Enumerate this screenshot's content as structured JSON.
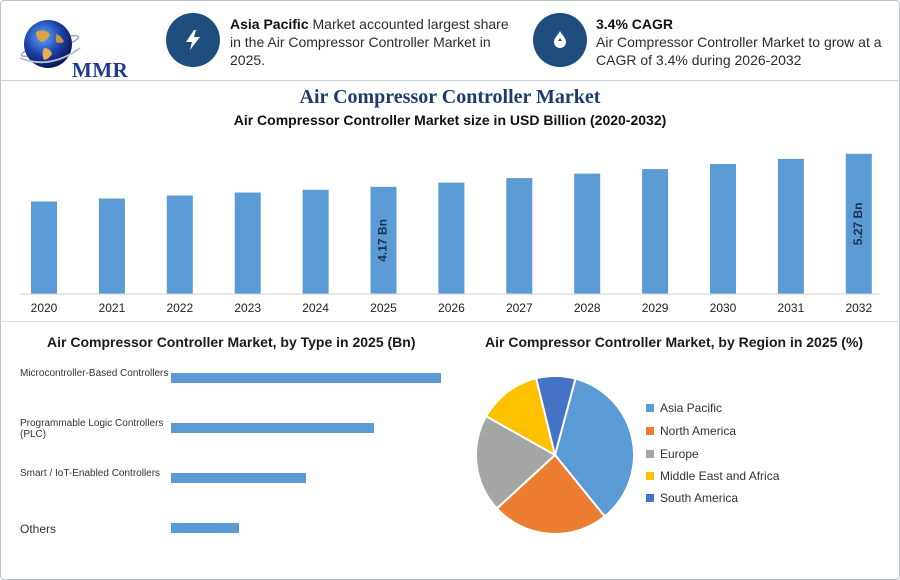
{
  "brand": {
    "logo_text": "MMR"
  },
  "header": {
    "left": {
      "highlight": "Asia Pacific",
      "text": " Market accounted largest share in the Air Compressor Controller Market in 2025."
    },
    "right": {
      "highlight": "3.4% CAGR",
      "text": "Air Compressor Controller Market to grow at a CAGR of 3.4% during 2026-2032"
    }
  },
  "title": "Air Compressor Controller Market",
  "subtitle": "Air Compressor Controller Market size in USD Billion (2020-2032)",
  "colors": {
    "bar": "#5b9bd5",
    "navy": "#1d4e7e",
    "title": "#1f3a6e"
  },
  "chart_data": [
    {
      "type": "bar",
      "title": "Air Compressor Controller Market size in USD Billion (2020-2032)",
      "categories": [
        "2020",
        "2021",
        "2022",
        "2023",
        "2024",
        "2025",
        "2026",
        "2027",
        "2028",
        "2029",
        "2030",
        "2031",
        "2032"
      ],
      "values": [
        3.68,
        3.78,
        3.88,
        3.98,
        4.07,
        4.17,
        4.31,
        4.46,
        4.61,
        4.76,
        4.93,
        5.1,
        5.27
      ],
      "data_labels": {
        "2025": "4.17 Bn",
        "2032": "5.27 Bn"
      },
      "ylim": [
        0,
        5.5
      ]
    },
    {
      "type": "bar",
      "orientation": "horizontal",
      "title": "Air Compressor Controller Market, by Type in 2025 (Bn)",
      "categories": [
        "Microcontroller-Based Controllers",
        "Programmable Logic Controllers (PLC)",
        "Smart / IoT-Enabled Controllers",
        "Others"
      ],
      "values": [
        1.68,
        1.26,
        0.84,
        0.42
      ],
      "xlim": [
        0,
        1.68
      ]
    },
    {
      "type": "pie",
      "title": "Air Compressor Controller Market, by Region in 2025 (%)",
      "categories": [
        "Asia Pacific",
        "North America",
        "Europe",
        "Middle East and Africa",
        "South America"
      ],
      "values": [
        35,
        24,
        20,
        13,
        8
      ],
      "colors": [
        "#5b9bd5",
        "#ed7d31",
        "#a5a5a5",
        "#ffc000",
        "#4472c4"
      ],
      "legend": "right"
    }
  ]
}
